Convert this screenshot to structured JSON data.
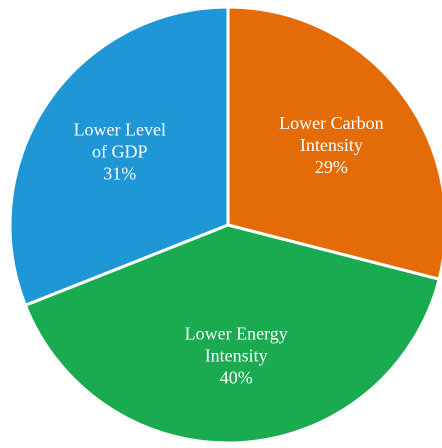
{
  "chart_data": {
    "type": "pie",
    "title": "",
    "start_angle_deg": 0,
    "direction": "clockwise",
    "slices": [
      {
        "label_lines": [
          "Lower Carbon",
          "Intensity"
        ],
        "value_label": "29%",
        "value": 29,
        "color": "#E36C09"
      },
      {
        "label_lines": [
          "Lower Energy",
          "Intensity"
        ],
        "value_label": "40%",
        "value": 40,
        "color": "#1AAA4F"
      },
      {
        "label_lines": [
          "Lower Level",
          "of GDP"
        ],
        "value_label": "31%",
        "value": 31,
        "color": "#1F96D6"
      }
    ]
  }
}
